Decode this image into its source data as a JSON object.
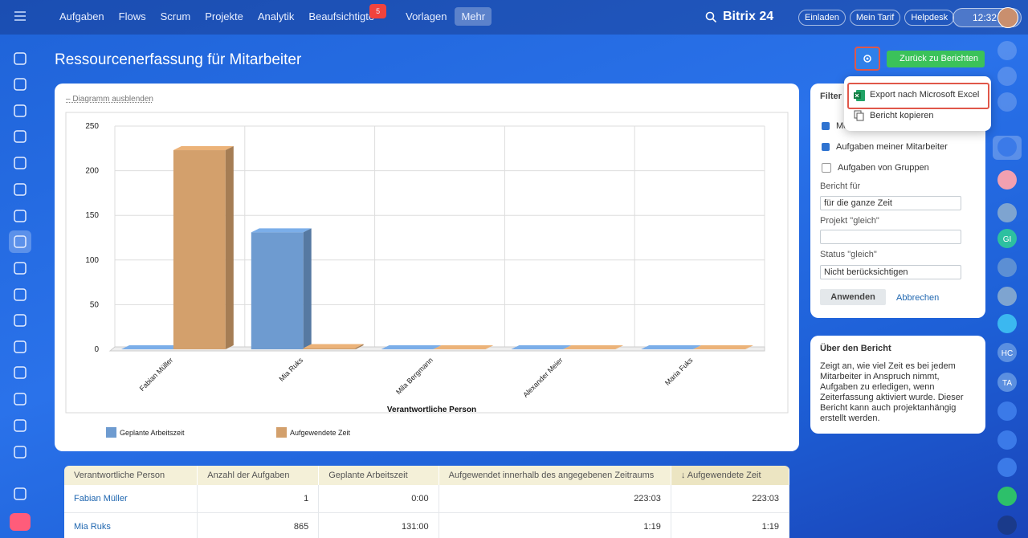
{
  "topbar": {
    "nav": [
      "Aufgaben",
      "Flows",
      "Scrum",
      "Projekte",
      "Analytik",
      "Beaufsichtigte",
      "Vorlagen",
      "Mehr"
    ],
    "badge": 5,
    "brand": "Bitrix 24",
    "buttons": [
      "Einladen",
      "Mein Tarif",
      "Helpdesk"
    ],
    "time": "12:32"
  },
  "header": {
    "title": "Ressourcenerfassung für Mitarbeiter",
    "back_button": "Zurück zu Berichten",
    "menu": [
      "Export nach Microsoft Excel",
      "Bericht kopieren"
    ]
  },
  "chart_toggle": "– Diagramm ausblenden",
  "chart_data": {
    "type": "bar",
    "categories": [
      "Fabian Müller",
      "Mia Ruks",
      "Mila Bergmann",
      "Alexander Meier",
      "Maria Fuks"
    ],
    "series": [
      {
        "name": "Geplante Arbeitszeit",
        "color": "#6e9bd0",
        "values": [
          0,
          131,
          0,
          0,
          0
        ]
      },
      {
        "name": "Aufgewendete Zeit",
        "color": "#d3a06c",
        "values": [
          223,
          1.3,
          0,
          0,
          0
        ]
      }
    ],
    "x_label": "Verantwortliche Person",
    "ylim": [
      0,
      250
    ],
    "yticks": [
      0,
      50,
      100,
      150,
      200,
      250
    ],
    "grid": true
  },
  "filter": {
    "title": "Filter",
    "checkboxes": [
      "Meine Aufgaben",
      "Aufgaben meiner Mitarbeiter",
      "Aufgaben von Gruppen"
    ],
    "report_for_label": "Bericht für",
    "report_for_value": "für die ganze Zeit",
    "project_label": "Projekt \"gleich\"",
    "status_label": "Status \"gleich\"",
    "status_value": "Nicht berücksichtigen",
    "apply": "Anwenden",
    "cancel": "Abbrechen"
  },
  "about": {
    "title": "Über den Bericht",
    "text": "Zeigt an, wie viel Zeit es bei jedem Mitarbeiter in Anspruch nimmt, Aufgaben zu erledigen, wenn Zeiterfassung aktiviert wurde. Dieser Bericht kann auch projektanhängig erstellt werden."
  },
  "table": {
    "columns": [
      "Verantwortliche Person",
      "Anzahl der Aufgaben",
      "Geplante Arbeitszeit",
      "Aufgewendet innerhalb des angegebenen Zeitraums",
      "↓ Aufgewendete Zeit"
    ],
    "rows": [
      [
        "Fabian Müller",
        "1",
        "0:00",
        "223:03",
        "223:03"
      ],
      [
        "Mia Ruks",
        "865",
        "131:00",
        "1:19",
        "1:19"
      ]
    ]
  },
  "right_sidebar": {
    "avatars": [
      "GI",
      "HC",
      "TA"
    ]
  }
}
